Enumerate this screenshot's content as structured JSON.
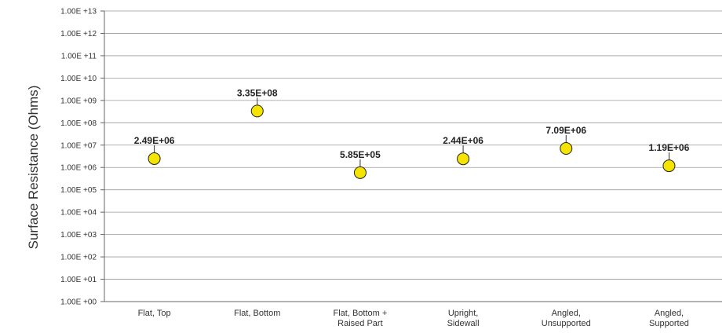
{
  "chart_data": {
    "type": "scatter",
    "title": "",
    "xlabel": "",
    "ylabel": "Surface Resistance (Ohms)",
    "y_scale": "log",
    "ylim": [
      1,
      10000000000000
    ],
    "y_tick_labels": [
      "1.00E +00",
      "1.00E +01",
      "1.00E +02",
      "1.00E +03",
      "1.00E +04",
      "1.00E +05",
      "1.00E +06",
      "1.00E +07",
      "1.00E +08",
      "1.00E +09",
      "1.00E +10",
      "1.00E +11",
      "1.00E +12",
      "1.00E +13"
    ],
    "categories": [
      [
        "Flat, Top"
      ],
      [
        "Flat, Bottom"
      ],
      [
        "Flat, Bottom +",
        "Raised Part"
      ],
      [
        "Upright,",
        "Sidewall"
      ],
      [
        "Angled,",
        "Unsupported"
      ],
      [
        "Angled,",
        "Supported"
      ]
    ],
    "values": [
      2490000,
      335000000,
      585000,
      2440000,
      7090000,
      1190000
    ],
    "data_labels": [
      "2.49E+06",
      "3.35E+08",
      "5.85E+05",
      "2.44E+06",
      "7.09E+06",
      "1.19E+06"
    ],
    "grid": true,
    "legend": "none",
    "marker_color": "#f5e400",
    "marker_edge_color": "#222222"
  }
}
